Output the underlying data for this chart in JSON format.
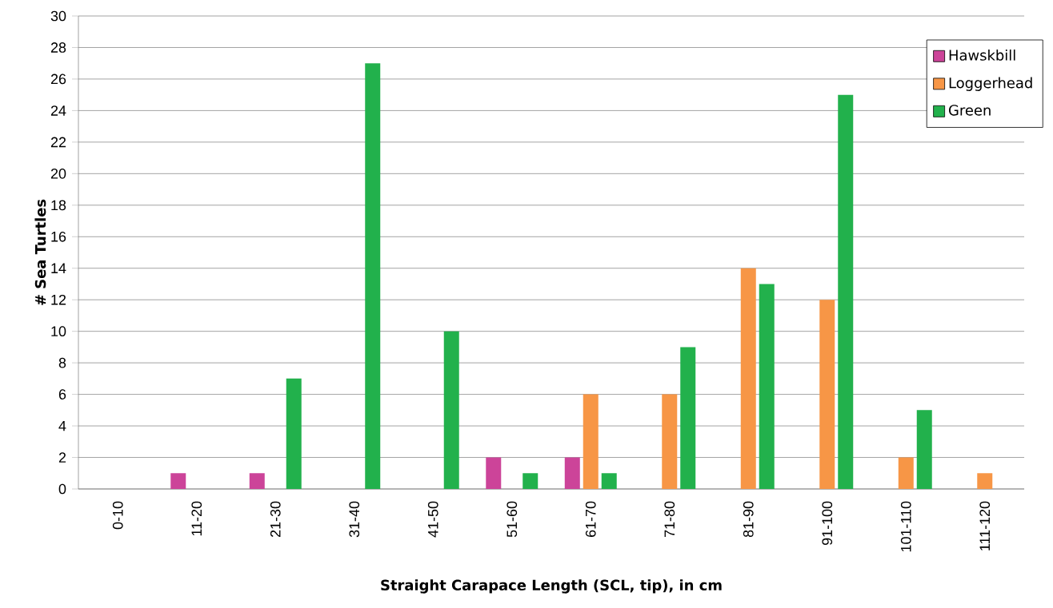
{
  "chart_data": {
    "type": "bar",
    "xlabel": "Straight Carapace  Length (SCL, tip), in cm",
    "ylabel": "# Sea Turtles",
    "categories": [
      "0-10",
      "11-20",
      "21-30",
      "31-40",
      "41-50",
      "51-60",
      "61-70",
      "71-80",
      "81-90",
      "91-100",
      "101-110",
      "111-120"
    ],
    "series": [
      {
        "name": "Hawskbill",
        "color": "#cc4499",
        "values": [
          0,
          1,
          1,
          0,
          0,
          2,
          2,
          0,
          0,
          0,
          0,
          0
        ]
      },
      {
        "name": "Loggerhead",
        "color": "#f79646",
        "values": [
          0,
          0,
          0,
          0,
          0,
          0,
          6,
          6,
          14,
          12,
          2,
          1
        ]
      },
      {
        "name": "Green",
        "color": "#22b14c",
        "values": [
          0,
          0,
          7,
          27,
          10,
          1,
          1,
          9,
          13,
          25,
          5,
          0
        ]
      }
    ],
    "ylim": [
      0,
      30
    ],
    "yticks": [
      0,
      2,
      4,
      6,
      8,
      10,
      12,
      14,
      16,
      18,
      20,
      22,
      24,
      26,
      28,
      30
    ],
    "grid": "y",
    "legend": "top right"
  }
}
